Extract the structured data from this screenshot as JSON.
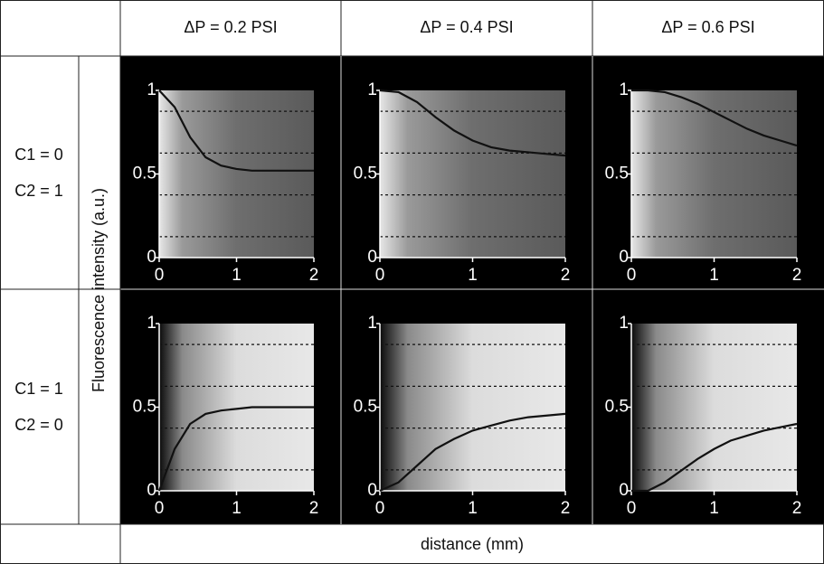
{
  "header": {
    "columns": [
      "ΔP = 0.2 PSI",
      "ΔP = 0.4 PSI",
      "ΔP = 0.6 PSI"
    ],
    "rows": [
      [
        "C1 = 0",
        "C2 = 1"
      ],
      [
        "C1 = 1",
        "C2 = 0"
      ]
    ],
    "y_label": "Fluorescence intensity (a.u.)",
    "x_label": "distance (mm)"
  },
  "chart_data": [
    {
      "type": "line",
      "x": [
        0,
        0.2,
        0.4,
        0.6,
        0.8,
        1.0,
        1.2,
        1.4,
        1.6,
        1.8,
        2.0
      ],
      "values": [
        1,
        0.9,
        0.72,
        0.6,
        0.55,
        0.53,
        0.52,
        0.52,
        0.52,
        0.52,
        0.52
      ],
      "color": "#111111",
      "xlim": [
        0,
        2
      ],
      "ylim": [
        0,
        1
      ],
      "xticks": [
        0,
        1,
        2
      ],
      "yticks": [
        0,
        0.5,
        1
      ],
      "reference_lines": [
        0.125,
        0.375,
        0.625,
        0.875
      ]
    },
    {
      "type": "line",
      "x": [
        0,
        0.2,
        0.4,
        0.6,
        0.8,
        1.0,
        1.2,
        1.4,
        1.6,
        1.8,
        2.0
      ],
      "values": [
        1,
        0.99,
        0.93,
        0.84,
        0.76,
        0.7,
        0.66,
        0.64,
        0.63,
        0.62,
        0.61
      ],
      "color": "#111111",
      "xlim": [
        0,
        2
      ],
      "ylim": [
        0,
        1
      ],
      "xticks": [
        0,
        1,
        2
      ],
      "yticks": [
        0,
        0.5,
        1
      ],
      "reference_lines": [
        0.125,
        0.375,
        0.625,
        0.875
      ]
    },
    {
      "type": "line",
      "x": [
        0,
        0.2,
        0.4,
        0.6,
        0.8,
        1.0,
        1.2,
        1.4,
        1.6,
        1.8,
        2.0
      ],
      "values": [
        1,
        1,
        0.99,
        0.96,
        0.92,
        0.87,
        0.82,
        0.77,
        0.73,
        0.7,
        0.67
      ],
      "color": "#111111",
      "xlim": [
        0,
        2
      ],
      "ylim": [
        0,
        1
      ],
      "xticks": [
        0,
        1,
        2
      ],
      "yticks": [
        0,
        0.5,
        1
      ],
      "reference_lines": [
        0.125,
        0.375,
        0.625,
        0.875
      ]
    },
    {
      "type": "line",
      "x": [
        0,
        0.2,
        0.4,
        0.6,
        0.8,
        1.0,
        1.2,
        1.4,
        1.6,
        1.8,
        2.0
      ],
      "values": [
        0,
        0.25,
        0.4,
        0.46,
        0.48,
        0.49,
        0.5,
        0.5,
        0.5,
        0.5,
        0.5
      ],
      "color": "#111111",
      "xlim": [
        0,
        2
      ],
      "ylim": [
        0,
        1
      ],
      "xticks": [
        0,
        1,
        2
      ],
      "yticks": [
        0,
        0.5,
        1
      ],
      "reference_lines": [
        0.125,
        0.375,
        0.625,
        0.875
      ]
    },
    {
      "type": "line",
      "x": [
        0,
        0.2,
        0.4,
        0.6,
        0.8,
        1.0,
        1.2,
        1.4,
        1.6,
        1.8,
        2.0
      ],
      "values": [
        0,
        0.05,
        0.15,
        0.25,
        0.31,
        0.36,
        0.39,
        0.42,
        0.44,
        0.45,
        0.46
      ],
      "color": "#111111",
      "xlim": [
        0,
        2
      ],
      "ylim": [
        0,
        1
      ],
      "xticks": [
        0,
        1,
        2
      ],
      "yticks": [
        0,
        0.5,
        1
      ],
      "reference_lines": [
        0.125,
        0.375,
        0.625,
        0.875
      ]
    },
    {
      "type": "line",
      "x": [
        0,
        0.2,
        0.4,
        0.6,
        0.8,
        1.0,
        1.2,
        1.4,
        1.6,
        1.8,
        2.0
      ],
      "values": [
        0,
        0,
        0.05,
        0.12,
        0.19,
        0.25,
        0.3,
        0.33,
        0.36,
        0.38,
        0.4
      ],
      "color": "#111111",
      "xlim": [
        0,
        2
      ],
      "ylim": [
        0,
        1
      ],
      "xticks": [
        0,
        1,
        2
      ],
      "yticks": [
        0,
        0.5,
        1
      ],
      "reference_lines": [
        0.125,
        0.375,
        0.625,
        0.875
      ]
    }
  ]
}
